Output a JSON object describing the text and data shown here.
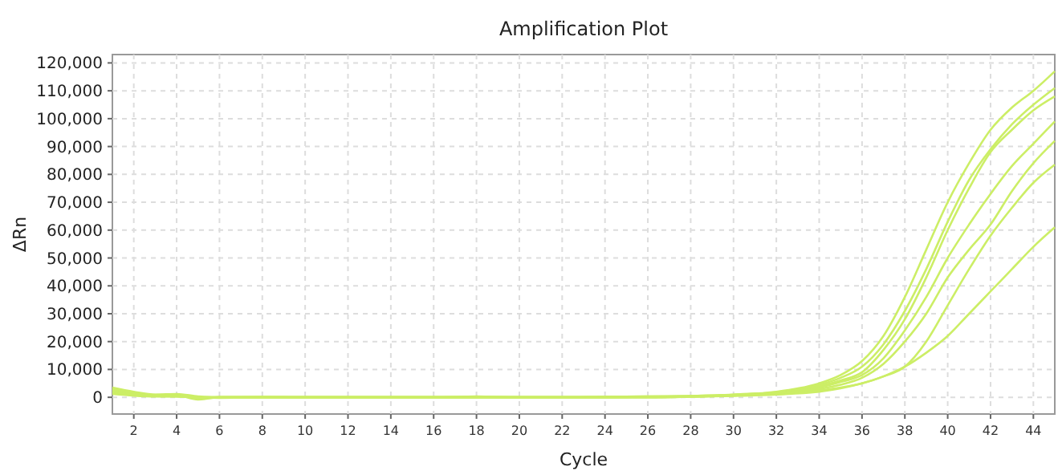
{
  "chart_data": {
    "type": "line",
    "title": "Amplification Plot",
    "xlabel": "Cycle",
    "ylabel": "ΔRn",
    "x": [
      1,
      2,
      3,
      4,
      5,
      6,
      8,
      10,
      12,
      14,
      16,
      18,
      20,
      22,
      24,
      26,
      28,
      30,
      32,
      34,
      35,
      36,
      37,
      38,
      39,
      40,
      41,
      42,
      43,
      44,
      45
    ],
    "series": [
      {
        "color": "#ccee66",
        "values": [
          3500,
          2000,
          1000,
          1200,
          300,
          0,
          0,
          0,
          0,
          0,
          0,
          0,
          0,
          0,
          200,
          300,
          500,
          1000,
          2000,
          5000,
          8000,
          13000,
          22000,
          36000,
          53000,
          70000,
          84000,
          96000,
          104000,
          110000,
          117000
        ]
      },
      {
        "color": "#ccee66",
        "values": [
          3000,
          1800,
          800,
          800,
          -500,
          0,
          200,
          0,
          0,
          0,
          0,
          300,
          0,
          0,
          0,
          200,
          400,
          900,
          1800,
          4500,
          7000,
          11000,
          19000,
          31000,
          46000,
          63000,
          78000,
          89000,
          98000,
          105000,
          111000
        ]
      },
      {
        "color": "#ccee66",
        "values": [
          2500,
          1500,
          900,
          1000,
          0,
          -200,
          0,
          0,
          0,
          0,
          0,
          0,
          0,
          0,
          200,
          300,
          500,
          900,
          1700,
          4000,
          6000,
          9000,
          17000,
          28000,
          43000,
          60000,
          75000,
          88000,
          96000,
          103000,
          108000
        ]
      },
      {
        "color": "#ccee66",
        "values": [
          2000,
          1200,
          600,
          700,
          -800,
          0,
          0,
          0,
          0,
          0,
          0,
          0,
          0,
          0,
          0,
          200,
          300,
          800,
          1500,
          3500,
          5500,
          8000,
          14000,
          24000,
          36000,
          50000,
          62000,
          73000,
          83000,
          91000,
          99000
        ]
      },
      {
        "color": "#ccee66",
        "values": [
          1800,
          1000,
          500,
          500,
          -300,
          0,
          0,
          0,
          0,
          0,
          0,
          0,
          0,
          0,
          0,
          0,
          200,
          700,
          1300,
          3000,
          4500,
          7000,
          12000,
          20000,
          30000,
          43000,
          53000,
          62000,
          74000,
          84000,
          92000
        ]
      },
      {
        "color": "#ccee66",
        "values": [
          1500,
          800,
          400,
          300,
          0,
          0,
          0,
          0,
          0,
          0,
          0,
          0,
          0,
          0,
          0,
          0,
          200,
          600,
          1200,
          2500,
          3500,
          5000,
          7500,
          11000,
          20000,
          33000,
          46000,
          58000,
          68000,
          77000,
          83500
        ]
      },
      {
        "color": "#ccee66",
        "values": [
          1200,
          600,
          300,
          300,
          0,
          0,
          0,
          0,
          0,
          0,
          0,
          0,
          0,
          0,
          0,
          0,
          200,
          500,
          1000,
          2000,
          3200,
          5000,
          7500,
          11000,
          16000,
          22000,
          30000,
          38000,
          46000,
          54000,
          61000
        ]
      }
    ],
    "xlim": [
      1,
      45
    ],
    "xticks": [
      2,
      4,
      6,
      8,
      10,
      12,
      14,
      16,
      18,
      20,
      22,
      24,
      26,
      28,
      30,
      32,
      34,
      36,
      38,
      40,
      42,
      44
    ],
    "ylim": [
      -6000,
      123000
    ],
    "yticks": [
      0,
      {
        "value": 10000,
        "label": "10,000"
      },
      {
        "value": 20000,
        "label": "20,000"
      },
      {
        "value": 30000,
        "label": "30,000"
      },
      {
        "value": 40000,
        "label": "40,000"
      },
      {
        "value": 50000,
        "label": "50,000"
      },
      {
        "value": 60000,
        "label": "60,000"
      },
      {
        "value": 70000,
        "label": "70,000"
      },
      {
        "value": 80000,
        "label": "80,000"
      },
      {
        "value": 90000,
        "label": "90,000"
      },
      {
        "value": 100000,
        "label": "100,000"
      },
      {
        "value": 110000,
        "label": "110,000"
      },
      {
        "value": 120000,
        "label": "120,000"
      }
    ],
    "grid": true,
    "marker": "none",
    "line_style": "solid"
  }
}
